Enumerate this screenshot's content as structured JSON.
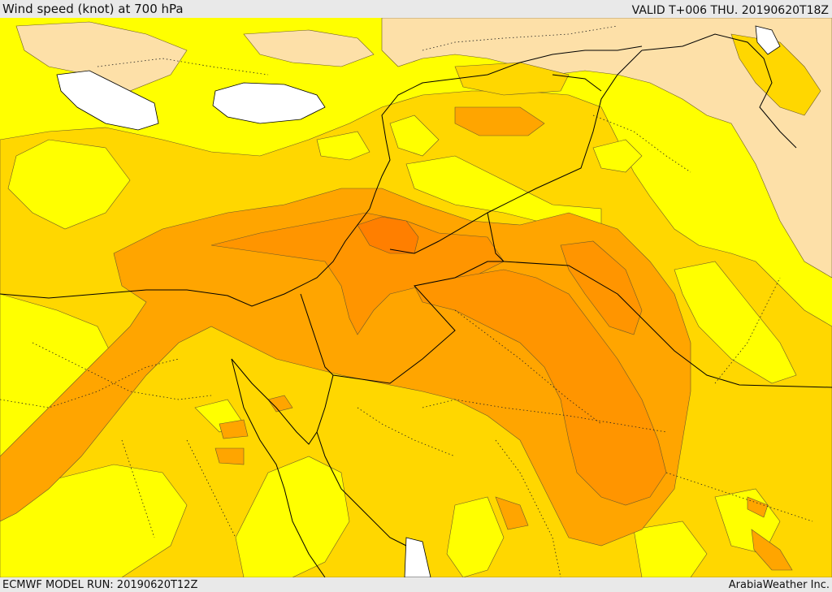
{
  "header": {
    "title": "Wind speed (knot) at 700 hPa",
    "valid": "VALID T+006 THU. 20190620T18Z"
  },
  "footer": {
    "model_run": "ECMWF MODEL RUN: 20190620T12Z",
    "credit": "ArabiaWeather Inc."
  },
  "colors": {
    "very_light": "#fde0a8",
    "light": "#ffff00",
    "moderate": "#ffd700",
    "fresh": "#ffa500",
    "strong": "#ff8c00",
    "stronger": "#ff7f00",
    "water": "#ffffff",
    "border": "#000000"
  }
}
